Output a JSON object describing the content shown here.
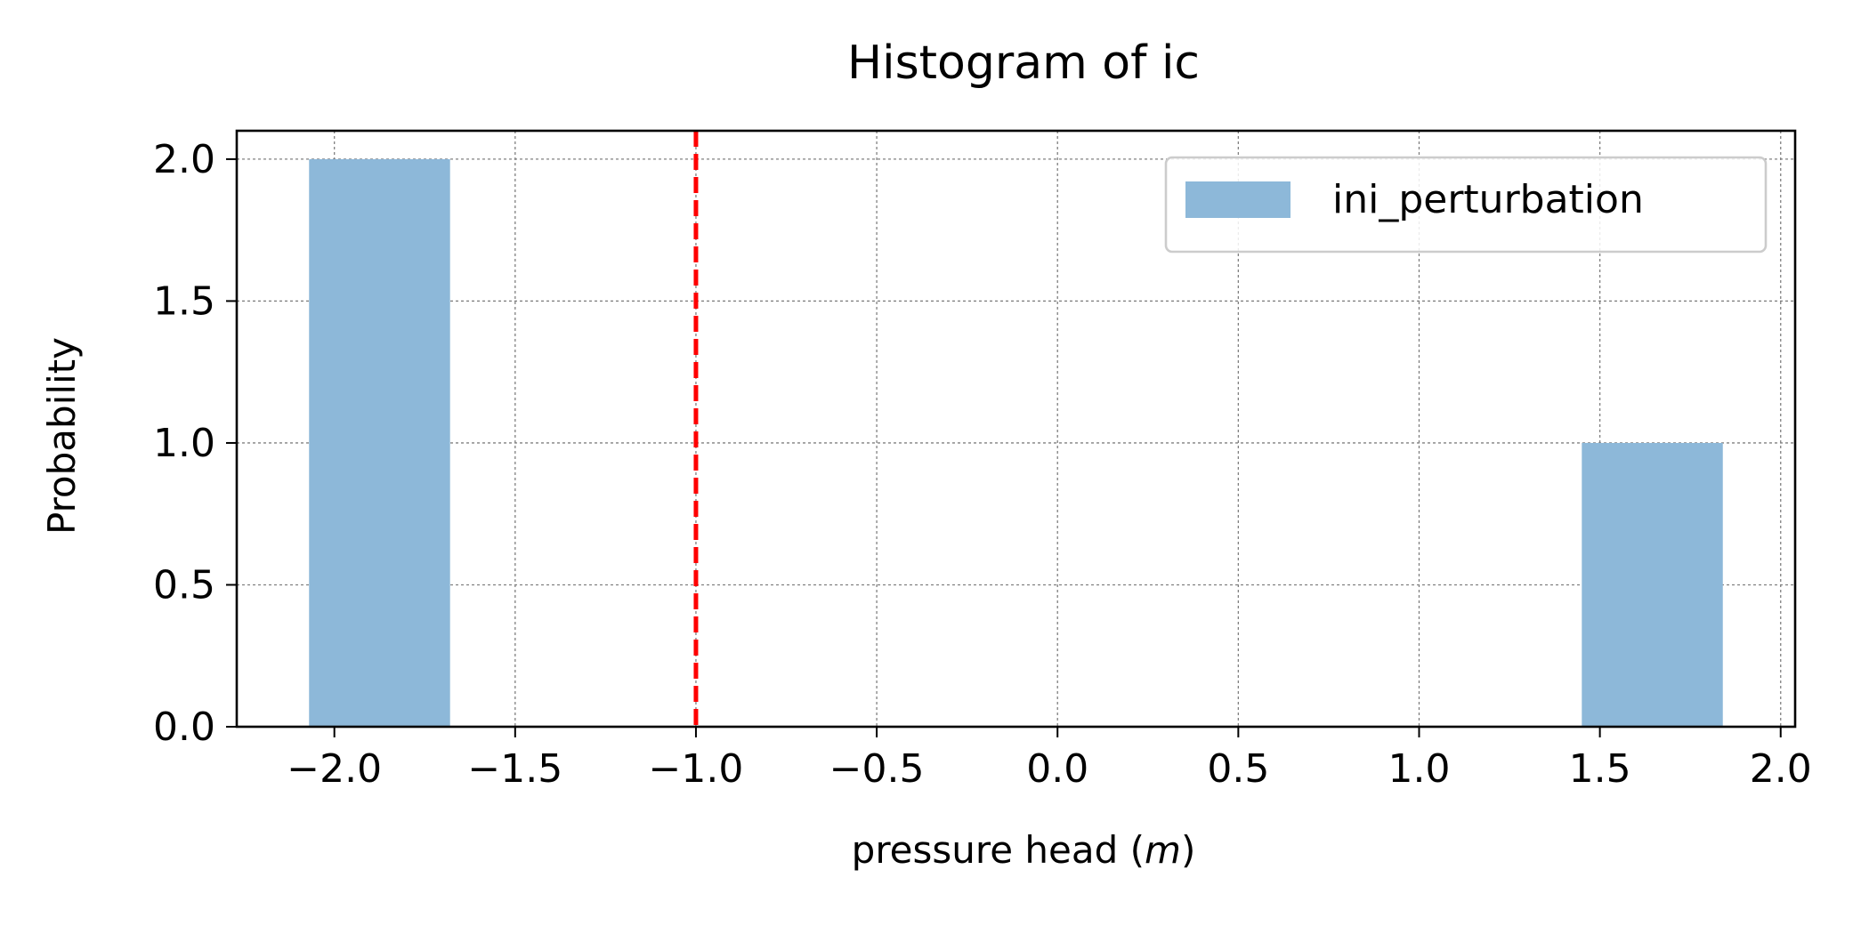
{
  "chart_data": {
    "type": "bar",
    "title": "Histogram of ic",
    "xlabel_prefix": "pressure head (",
    "xlabel_unit": "m",
    "xlabel_suffix": ")",
    "ylabel": "Probability",
    "xlim": [
      -2.27,
      2.04
    ],
    "ylim": [
      0,
      2.1
    ],
    "xticks": [
      -2.0,
      -1.5,
      -1.0,
      -0.5,
      0.0,
      0.5,
      1.0,
      1.5,
      2.0
    ],
    "xtick_labels": [
      "−2.0",
      "−1.5",
      "−1.0",
      "−0.5",
      "0.0",
      "0.5",
      "1.0",
      "1.5",
      "2.0"
    ],
    "yticks": [
      0.0,
      0.5,
      1.0,
      1.5,
      2.0
    ],
    "ytick_labels": [
      "0.0",
      "0.5",
      "1.0",
      "1.5",
      "2.0"
    ],
    "grid": true,
    "legend_position": "top-right",
    "series": [
      {
        "name": "ini_perturbation",
        "color": "#8db8d9",
        "bins": [
          {
            "x0": -2.07,
            "x1": -1.68,
            "value": 2.0
          },
          {
            "x0": 1.45,
            "x1": 1.84,
            "value": 1.0
          }
        ]
      }
    ],
    "reference_line": {
      "x": -1.0,
      "color": "#ff0000",
      "style": "dashed"
    }
  }
}
